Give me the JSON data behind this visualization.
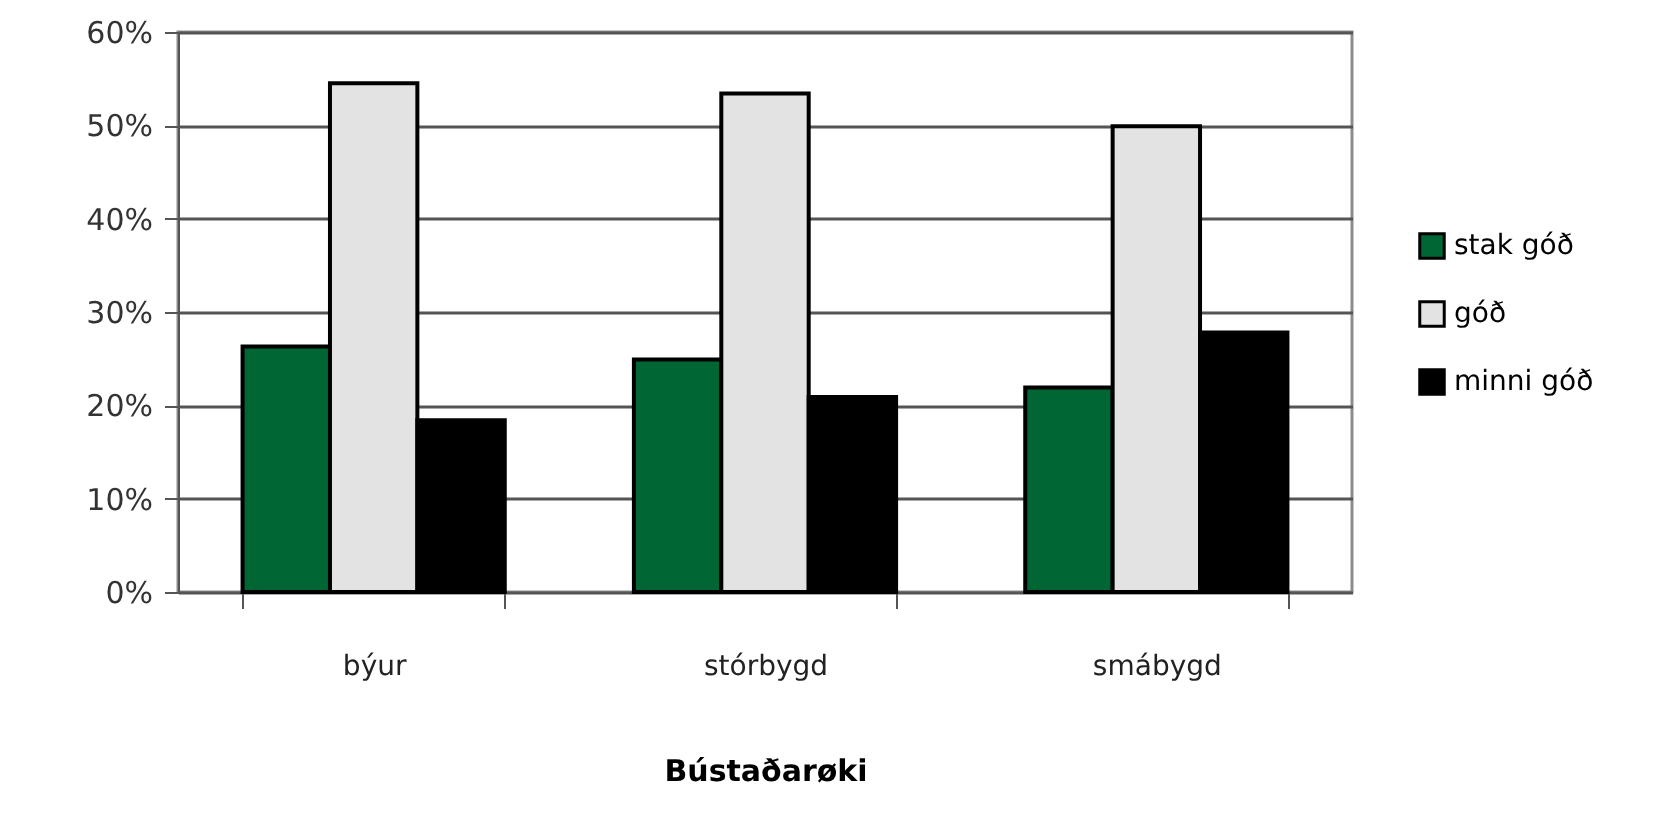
{
  "chart_data": {
    "type": "bar",
    "xlabel": "Bústaðarøki",
    "categories": [
      "býur",
      "stórbygd",
      "smábygd"
    ],
    "series": [
      {
        "name": "stak góð",
        "color": "#006633",
        "values": [
          26.3,
          24.9,
          21.9
        ]
      },
      {
        "name": "góð",
        "color": "#e3e3e3",
        "values": [
          54.5,
          53.4,
          49.9
        ]
      },
      {
        "name": "minni góð",
        "color": "#000000",
        "values": [
          18.4,
          20.9,
          27.8
        ]
      }
    ],
    "ylim": [
      0,
      60
    ],
    "yticks": [
      {
        "value": 0,
        "label": "0%"
      },
      {
        "value": 10,
        "label": "10%"
      },
      {
        "value": 20,
        "label": "20%"
      },
      {
        "value": 30,
        "label": "30%"
      },
      {
        "value": 40,
        "label": "40%"
      },
      {
        "value": 50,
        "label": "50%"
      },
      {
        "value": 60,
        "label": "60%"
      }
    ],
    "grid": "y",
    "legend": "right"
  }
}
